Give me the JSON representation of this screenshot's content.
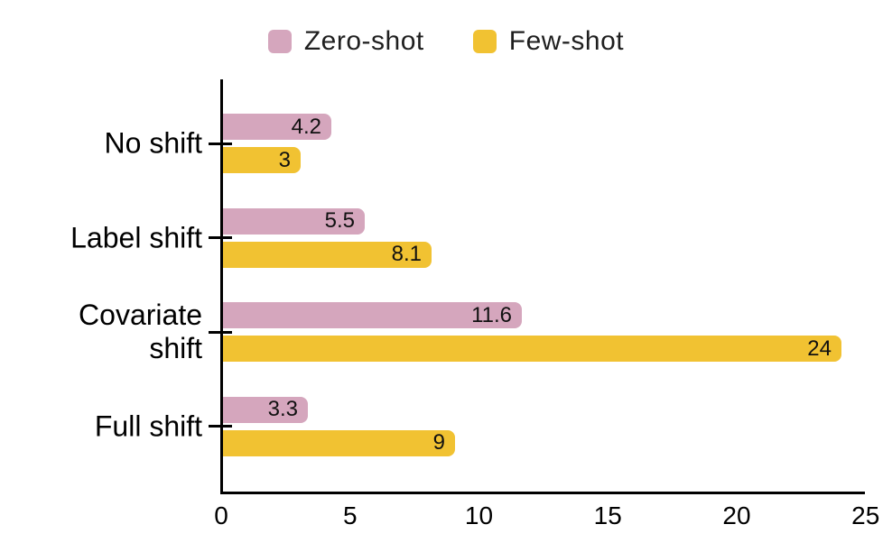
{
  "chart_data": {
    "type": "bar",
    "orientation": "horizontal",
    "title": "",
    "xlabel": "",
    "ylabel": "",
    "categories": [
      "No shift",
      "Label shift",
      "Covariate shift",
      "Full shift"
    ],
    "series": [
      {
        "name": "Zero-shot",
        "color": "#d5a6bd",
        "values": [
          4.2,
          5.5,
          11.6,
          3.3
        ]
      },
      {
        "name": "Few-shot",
        "color": "#f1c232",
        "values": [
          3,
          8.1,
          24,
          9
        ]
      }
    ],
    "value_labels": [
      [
        "4.2",
        "3"
      ],
      [
        "5.5",
        "8.1"
      ],
      [
        "11.6",
        "24"
      ],
      [
        "3.3",
        "9"
      ]
    ],
    "xlim": [
      0,
      25
    ],
    "x_ticks": [
      0,
      5,
      10,
      15,
      20,
      25
    ],
    "grid": false,
    "legend_position": "top",
    "axis_color": "#000000",
    "text_color": "#000000",
    "background_color": "#ffffff"
  }
}
